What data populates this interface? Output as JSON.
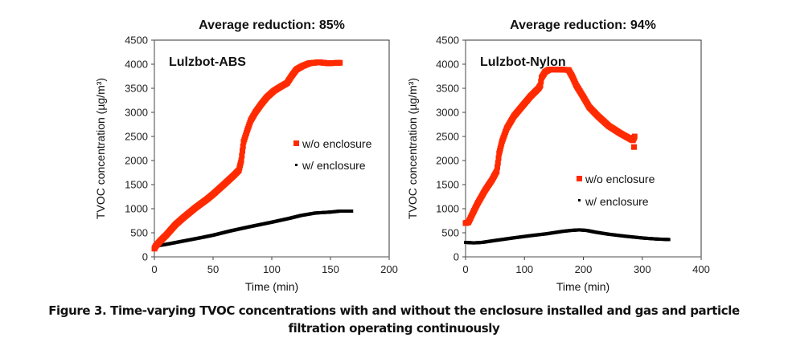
{
  "chart_data": [
    {
      "type": "scatter",
      "title": "Average reduction: 85%",
      "annotation": "Lulzbot-ABS",
      "xlabel": "Time (min)",
      "ylabel": "TVOC concentration (µg/m³)",
      "xlim": [
        0,
        200
      ],
      "ylim": [
        0,
        4500
      ],
      "xticks": [
        0,
        50,
        100,
        150,
        200
      ],
      "yticks": [
        0,
        500,
        1000,
        1500,
        2000,
        2500,
        3000,
        3500,
        4000,
        4500
      ],
      "grid": false,
      "legend_position": "center-right",
      "series": [
        {
          "name": "w/o enclosure",
          "color": "#ff2a00",
          "marker": "square",
          "points": [
            [
              0,
              170
            ],
            [
              1,
              220
            ],
            [
              5,
              330
            ],
            [
              10,
              450
            ],
            [
              18,
              670
            ],
            [
              25,
              820
            ],
            [
              35,
              1020
            ],
            [
              45,
              1200
            ],
            [
              50,
              1300
            ],
            [
              60,
              1520
            ],
            [
              68,
              1700
            ],
            [
              72,
              1800
            ],
            [
              73,
              1900
            ],
            [
              74,
              2000
            ],
            [
              75,
              2200
            ],
            [
              76,
              2390
            ],
            [
              79,
              2620
            ],
            [
              82,
              2830
            ],
            [
              86,
              3000
            ],
            [
              91,
              3170
            ],
            [
              96,
              3320
            ],
            [
              102,
              3450
            ],
            [
              108,
              3540
            ],
            [
              113,
              3610
            ],
            [
              117,
              3760
            ],
            [
              121,
              3890
            ],
            [
              126,
              3960
            ],
            [
              132,
              4020
            ],
            [
              140,
              4040
            ],
            [
              148,
              4020
            ],
            [
              158,
              4030
            ]
          ]
        },
        {
          "name": "w/ enclosure",
          "color": "#000000",
          "marker": "dot",
          "points": [
            [
              0,
              220
            ],
            [
              10,
              260
            ],
            [
              25,
              330
            ],
            [
              40,
              400
            ],
            [
              50,
              450
            ],
            [
              65,
              540
            ],
            [
              80,
              620
            ],
            [
              100,
              720
            ],
            [
              115,
              800
            ],
            [
              125,
              860
            ],
            [
              137,
              910
            ],
            [
              150,
              930
            ],
            [
              158,
              950
            ],
            [
              168,
              950
            ]
          ]
        }
      ]
    },
    {
      "type": "scatter",
      "title": "Average reduction: 94%",
      "annotation": "Lulzbot-Nylon",
      "xlabel": "Time (min)",
      "ylabel": "TVOC concentration (µg/m³)",
      "xlim": [
        0,
        400
      ],
      "ylim": [
        0,
        4500
      ],
      "xticks": [
        0,
        100,
        200,
        300,
        400
      ],
      "yticks": [
        0,
        500,
        1000,
        1500,
        2000,
        2500,
        3000,
        3500,
        4000,
        4500
      ],
      "grid": false,
      "legend_position": "center-right",
      "series": [
        {
          "name": "w/o enclosure",
          "color": "#ff2a00",
          "marker": "square",
          "points": [
            [
              0,
              700
            ],
            [
              5,
              720
            ],
            [
              12,
              900
            ],
            [
              20,
              1100
            ],
            [
              33,
              1380
            ],
            [
              45,
              1600
            ],
            [
              53,
              1780
            ],
            [
              55,
              1950
            ],
            [
              57,
              2150
            ],
            [
              62,
              2400
            ],
            [
              70,
              2670
            ],
            [
              82,
              2920
            ],
            [
              97,
              3140
            ],
            [
              110,
              3330
            ],
            [
              124,
              3500
            ],
            [
              127,
              3560
            ],
            [
              129,
              3720
            ],
            [
              135,
              3840
            ],
            [
              142,
              3890
            ],
            [
              160,
              3890
            ],
            [
              175,
              3880
            ],
            [
              181,
              3750
            ],
            [
              188,
              3560
            ],
            [
              200,
              3320
            ],
            [
              210,
              3110
            ],
            [
              225,
              2920
            ],
            [
              243,
              2720
            ],
            [
              262,
              2570
            ],
            [
              284,
              2420
            ],
            [
              287,
              2500
            ],
            [
              286,
              2280
            ]
          ]
        },
        {
          "name": "w/ enclosure",
          "color": "#000000",
          "marker": "dot",
          "points": [
            [
              0,
              300
            ],
            [
              14,
              290
            ],
            [
              28,
              300
            ],
            [
              50,
              340
            ],
            [
              79,
              390
            ],
            [
              110,
              440
            ],
            [
              138,
              480
            ],
            [
              165,
              530
            ],
            [
              180,
              550
            ],
            [
              193,
              560
            ],
            [
              205,
              550
            ],
            [
              222,
              510
            ],
            [
              243,
              470
            ],
            [
              270,
              430
            ],
            [
              302,
              390
            ],
            [
              325,
              370
            ],
            [
              345,
              360
            ]
          ]
        }
      ]
    }
  ],
  "caption": {
    "line1": "Figure 3. Time-varying TVOC concentrations with and without the enclosure installed and gas and particle",
    "line2": "filtration operating continuously"
  }
}
